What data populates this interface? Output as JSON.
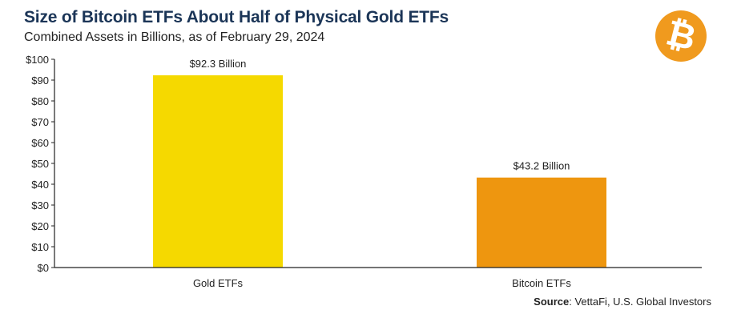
{
  "chart_data": {
    "type": "bar",
    "title": "Size of Bitcoin ETFs About Half of Physical Gold ETFs",
    "subtitle": "Combined Assets in Billions, as of February 29, 2024",
    "categories": [
      "Gold ETFs",
      "Bitcoin ETFs"
    ],
    "values": [
      92.3,
      43.2
    ],
    "data_labels": [
      "$92.3 Billion",
      "$43.2 Billion"
    ],
    "colors": [
      "#f5d900",
      "#ee960f"
    ],
    "ylim": [
      0,
      100
    ],
    "yticks": [
      0,
      10,
      20,
      30,
      40,
      50,
      60,
      70,
      80,
      90,
      100
    ],
    "ytick_labels": [
      "$0",
      "$10",
      "$20",
      "$30",
      "$40",
      "$50",
      "$60",
      "$70",
      "$80",
      "$90",
      "$100"
    ],
    "xlabel": "",
    "ylabel": "",
    "grid": false,
    "source_label": "Source",
    "source_text": ": VettaFi, U.S. Global Investors"
  },
  "logo": {
    "icon": "bitcoin-icon",
    "glyph": "₿",
    "color": "#f09a1e"
  }
}
